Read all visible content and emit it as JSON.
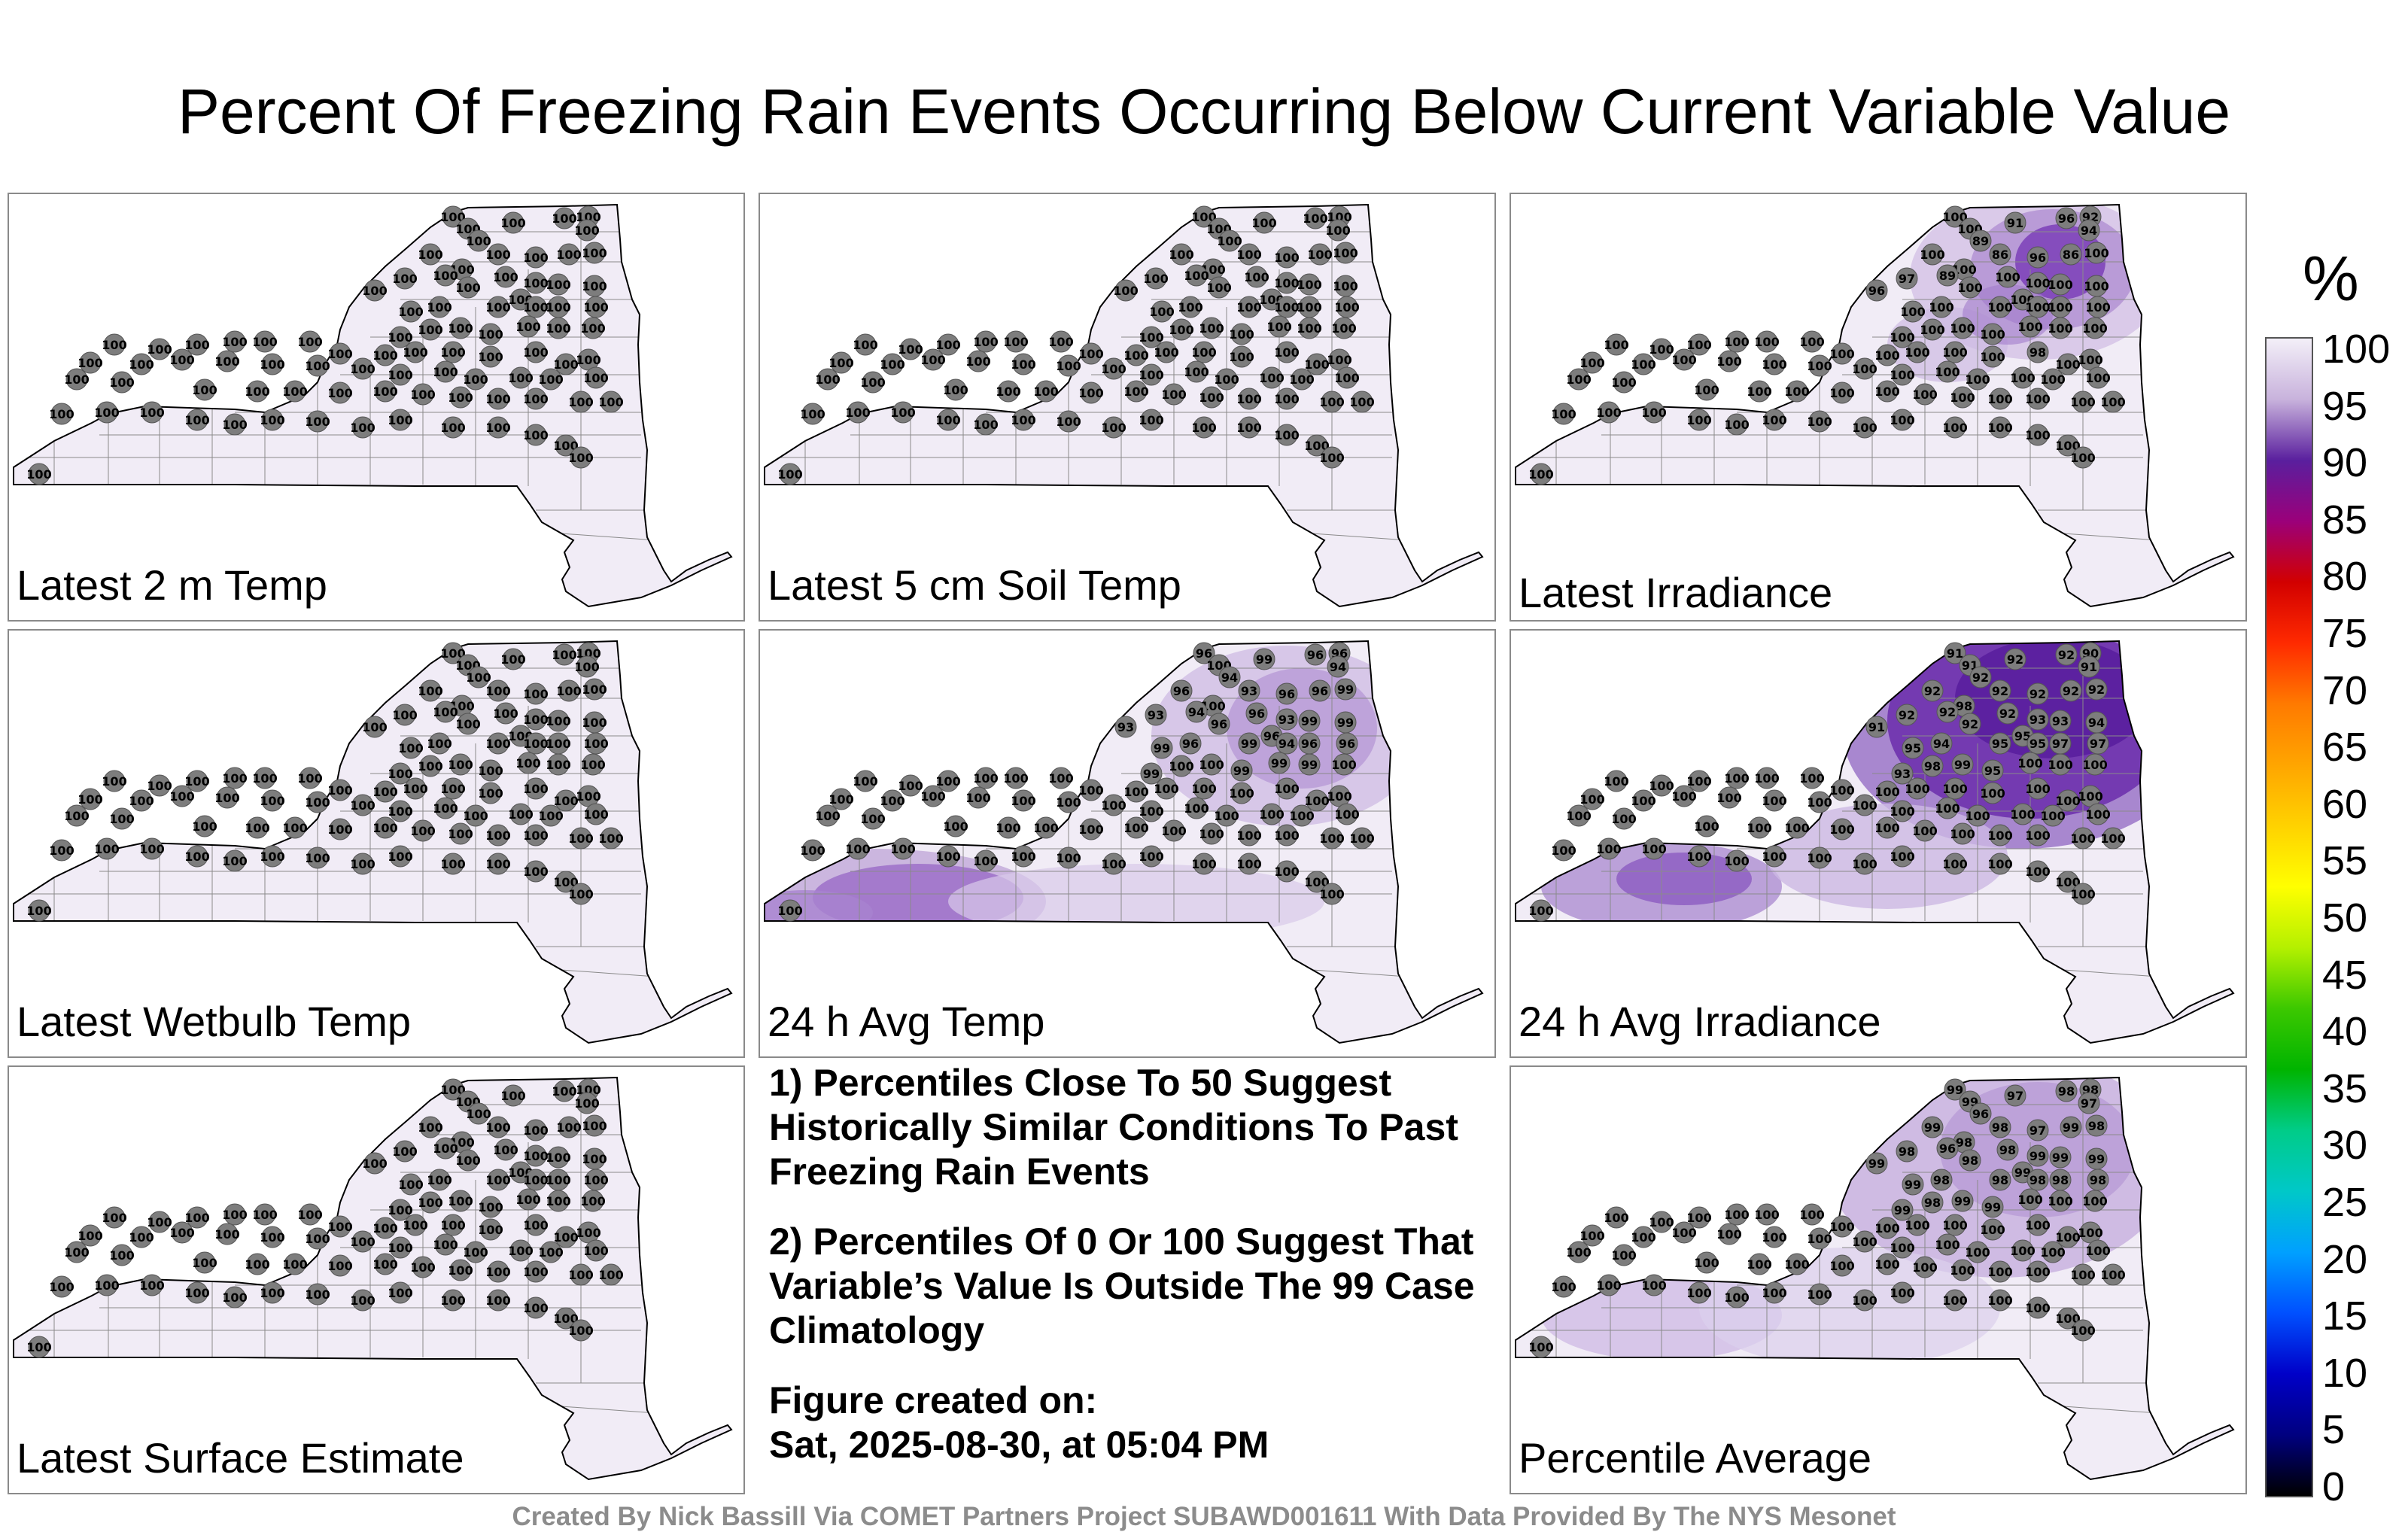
{
  "title": "Percent Of Freezing Rain Events Occurring Below Current Variable Value",
  "colorbar": {
    "unit": "%",
    "ticks": [
      "100",
      "95",
      "90",
      "85",
      "80",
      "75",
      "70",
      "65",
      "60",
      "55",
      "50",
      "45",
      "40",
      "35",
      "30",
      "25",
      "20",
      "15",
      "10",
      "5",
      "0"
    ],
    "colors": [
      "#f3eff8",
      "#c8b2dc",
      "#5a1f9e",
      "#9b007a",
      "#d20000",
      "#ff2a00",
      "#ff7a00",
      "#ffa500",
      "#ffd200",
      "#ffff00",
      "#b4f000",
      "#3cc800",
      "#00b400",
      "#00cc88",
      "#00c8c8",
      "#00a0ff",
      "#0050ff",
      "#0000c8",
      "#000080",
      "#000000"
    ]
  },
  "panels": [
    {
      "id": "latest-2m-temp",
      "label": "Latest 2 m Temp",
      "shading": "none",
      "values": [
        "100",
        "100",
        "100",
        "100",
        "100",
        "100",
        "100",
        "100",
        "100",
        "100",
        "100",
        "100",
        "100",
        "100",
        "100",
        "100",
        "100",
        "100",
        "100",
        "100",
        "100",
        "100",
        "100",
        "100",
        "100",
        "100",
        "100",
        "100",
        "100",
        "100",
        "100",
        "100",
        "100",
        "100",
        "100",
        "100",
        "100",
        "100",
        "100",
        "100",
        "100",
        "100",
        "100",
        "100",
        "100",
        "100",
        "100",
        "100",
        "100",
        "100",
        "100",
        "100",
        "100",
        "100",
        "100",
        "100",
        "100",
        "100",
        "100",
        "100",
        "100",
        "100",
        "100",
        "100",
        "100",
        "100",
        "100",
        "100",
        "100",
        "100",
        "100",
        "100",
        "100",
        "100",
        "100",
        "100",
        "100",
        "100",
        "100",
        "100",
        "100",
        "100",
        "100",
        "100",
        "100",
        "100",
        "100",
        "100",
        "100",
        "100"
      ]
    },
    {
      "id": "latest-5cm-soil-temp",
      "label": "Latest 5 cm Soil Temp",
      "shading": "none",
      "values": [
        "100",
        "100",
        "100",
        "100",
        "100",
        "100",
        "100",
        "100",
        "100",
        "100",
        "100",
        "100",
        "100",
        "100",
        "100",
        "100",
        "100",
        "100",
        "100",
        "100",
        "100",
        "100",
        "100",
        "100",
        "100",
        "100",
        "100",
        "100",
        "100",
        "100",
        "100",
        "100",
        "100",
        "100",
        "100",
        "100",
        "100",
        "100",
        "100",
        "100",
        "100",
        "100",
        "100",
        "100",
        "100",
        "100",
        "100",
        "100",
        "100",
        "100",
        "100",
        "100",
        "100",
        "100",
        "100",
        "100",
        "100",
        "100",
        "100",
        "100",
        "100",
        "100",
        "100",
        "100",
        "100",
        "100",
        "100",
        "100",
        "100",
        "100",
        "100",
        "100",
        "100",
        "100",
        "100",
        "100",
        "100",
        "100",
        "100",
        "100",
        "100",
        "100",
        "100",
        "100",
        "100",
        "100",
        "100",
        "100",
        "100",
        "100"
      ]
    },
    {
      "id": "latest-irradiance",
      "label": "Latest Irradiance",
      "shading": "northeast",
      "values": [
        "100",
        "100",
        "91",
        "96",
        "92",
        "94",
        "89",
        "100",
        "86",
        "96",
        "86",
        "100",
        "100",
        "97",
        "96",
        "89",
        "100",
        "100",
        "100",
        "100",
        "100",
        "100",
        "100",
        "100",
        "100",
        "100",
        "100",
        "100",
        "100",
        "100",
        "100",
        "100",
        "100",
        "100",
        "100",
        "100",
        "100",
        "100",
        "100",
        "100",
        "100",
        "100",
        "100",
        "100",
        "100",
        "100",
        "98",
        "100",
        "100",
        "100",
        "100",
        "100",
        "100",
        "100",
        "100",
        "100",
        "100",
        "100",
        "100",
        "100",
        "100",
        "100",
        "100",
        "100",
        "100",
        "100",
        "100",
        "100",
        "100",
        "100",
        "100",
        "100",
        "100",
        "100",
        "100",
        "100",
        "100",
        "100",
        "100",
        "100",
        "100",
        "100",
        "100",
        "100",
        "100",
        "100",
        "100",
        "100",
        "100",
        "100"
      ]
    },
    {
      "id": "latest-wetbulb-temp",
      "label": "Latest Wetbulb Temp",
      "shading": "none",
      "values": [
        "100",
        "100",
        "100",
        "100",
        "100",
        "100",
        "100",
        "100",
        "100",
        "100",
        "100",
        "100",
        "100",
        "100",
        "100",
        "100",
        "100",
        "100",
        "100",
        "100",
        "100",
        "100",
        "100",
        "100",
        "100",
        "100",
        "100",
        "100",
        "100",
        "100",
        "100",
        "100",
        "100",
        "100",
        "100",
        "100",
        "100",
        "100",
        "100",
        "100",
        "100",
        "100",
        "100",
        "100",
        "100",
        "100",
        "100",
        "100",
        "100",
        "100",
        "100",
        "100",
        "100",
        "100",
        "100",
        "100",
        "100",
        "100",
        "100",
        "100",
        "100",
        "100",
        "100",
        "100",
        "100",
        "100",
        "100",
        "100",
        "100",
        "100",
        "100",
        "100",
        "100",
        "100",
        "100",
        "100",
        "100",
        "100",
        "100",
        "100",
        "100",
        "100",
        "100",
        "100",
        "100",
        "100",
        "100",
        "100",
        "100",
        "100"
      ]
    },
    {
      "id": "24h-avg-temp",
      "label": "24 h Avg Temp",
      "shading": "southwest-north",
      "values": [
        "96",
        "100",
        "99",
        "96",
        "96",
        "94",
        "94",
        "96",
        "93",
        "96",
        "96",
        "99",
        "100",
        "93",
        "93",
        "94",
        "96",
        "96",
        "93",
        "99",
        "99",
        "99",
        "96",
        "99",
        "96",
        "94",
        "96",
        "96",
        "99",
        "100",
        "100",
        "99",
        "99",
        "99",
        "100",
        "100",
        "100",
        "100",
        "100",
        "100",
        "100",
        "100",
        "100",
        "100",
        "100",
        "100",
        "100",
        "100",
        "100",
        "100",
        "100",
        "100",
        "100",
        "100",
        "100",
        "100",
        "100",
        "100",
        "100",
        "100",
        "100",
        "100",
        "100",
        "100",
        "100",
        "100",
        "100",
        "100",
        "100",
        "100",
        "100",
        "100",
        "100",
        "100",
        "100",
        "100",
        "100",
        "100",
        "100",
        "100",
        "100",
        "100",
        "100",
        "100",
        "100",
        "100",
        "100",
        "100",
        "100",
        "100"
      ]
    },
    {
      "id": "24h-avg-irradiance",
      "label": "24 h Avg Irradiance",
      "shading": "strong-northeast",
      "values": [
        "91",
        "91",
        "92",
        "92",
        "90",
        "91",
        "92",
        "92",
        "92",
        "92",
        "92",
        "92",
        "98",
        "92",
        "91",
        "92",
        "92",
        "92",
        "93",
        "93",
        "94",
        "95",
        "94",
        "95",
        "95",
        "95",
        "97",
        "97",
        "93",
        "98",
        "99",
        "95",
        "100",
        "100",
        "100",
        "100",
        "100",
        "100",
        "100",
        "100",
        "100",
        "100",
        "100",
        "100",
        "100",
        "100",
        "100",
        "100",
        "100",
        "100",
        "100",
        "100",
        "100",
        "100",
        "100",
        "100",
        "100",
        "100",
        "100",
        "100",
        "100",
        "100",
        "100",
        "100",
        "100",
        "100",
        "100",
        "100",
        "100",
        "100",
        "100",
        "100",
        "100",
        "100",
        "100",
        "100",
        "100",
        "100",
        "100",
        "100",
        "100",
        "100",
        "100",
        "100",
        "100",
        "100",
        "100",
        "100",
        "100",
        "100"
      ]
    },
    {
      "id": "latest-surface-estimate",
      "label": "Latest Surface Estimate",
      "shading": "none",
      "values": [
        "100",
        "100",
        "100",
        "100",
        "100",
        "100",
        "100",
        "100",
        "100",
        "100",
        "100",
        "100",
        "100",
        "100",
        "100",
        "100",
        "100",
        "100",
        "100",
        "100",
        "100",
        "100",
        "100",
        "100",
        "100",
        "100",
        "100",
        "100",
        "100",
        "100",
        "100",
        "100",
        "100",
        "100",
        "100",
        "100",
        "100",
        "100",
        "100",
        "100",
        "100",
        "100",
        "100",
        "100",
        "100",
        "100",
        "100",
        "100",
        "100",
        "100",
        "100",
        "100",
        "100",
        "100",
        "100",
        "100",
        "100",
        "100",
        "100",
        "100",
        "100",
        "100",
        "100",
        "100",
        "100",
        "100",
        "100",
        "100",
        "100",
        "100",
        "100",
        "100",
        "100",
        "100",
        "100",
        "100",
        "100",
        "100",
        "100",
        "100",
        "100",
        "100",
        "100",
        "100",
        "100",
        "100",
        "100",
        "100",
        "100",
        "100"
      ]
    },
    {
      "id": "percentile-average",
      "label": "Percentile Average",
      "shading": "mild",
      "values": [
        "99",
        "99",
        "97",
        "98",
        "98",
        "97",
        "96",
        "99",
        "98",
        "97",
        "99",
        "98",
        "98",
        "98",
        "99",
        "96",
        "98",
        "98",
        "99",
        "99",
        "99",
        "99",
        "98",
        "98",
        "99",
        "98",
        "98",
        "98",
        "99",
        "98",
        "99",
        "99",
        "100",
        "100",
        "100",
        "100",
        "100",
        "100",
        "100",
        "100",
        "100",
        "100",
        "100",
        "100",
        "100",
        "100",
        "100",
        "100",
        "100",
        "100",
        "100",
        "100",
        "100",
        "100",
        "100",
        "100",
        "100",
        "100",
        "100",
        "100",
        "100",
        "100",
        "100",
        "100",
        "100",
        "100",
        "100",
        "100",
        "100",
        "100",
        "100",
        "100",
        "100",
        "100",
        "100",
        "100",
        "100",
        "100",
        "100",
        "100",
        "100",
        "100",
        "100",
        "100",
        "100",
        "100",
        "100",
        "100",
        "100",
        "100"
      ]
    }
  ],
  "notes": {
    "n1": "1) Percentiles Close To 50 Suggest Historically Similar Conditions To Past Freezing Rain Events",
    "n2": "2) Percentiles Of 0 Or 100 Suggest That Variable’s Value Is Outside The 99 Case Climatology",
    "n3_line1": "Figure created on:",
    "n3_line2": "Sat, 2025-08-30, at 05:04 PM"
  },
  "credit": "Created By Nick Bassill Via COMET Partners Project SUBAWD001611 With Data Provided By The NYS Mesonet"
}
